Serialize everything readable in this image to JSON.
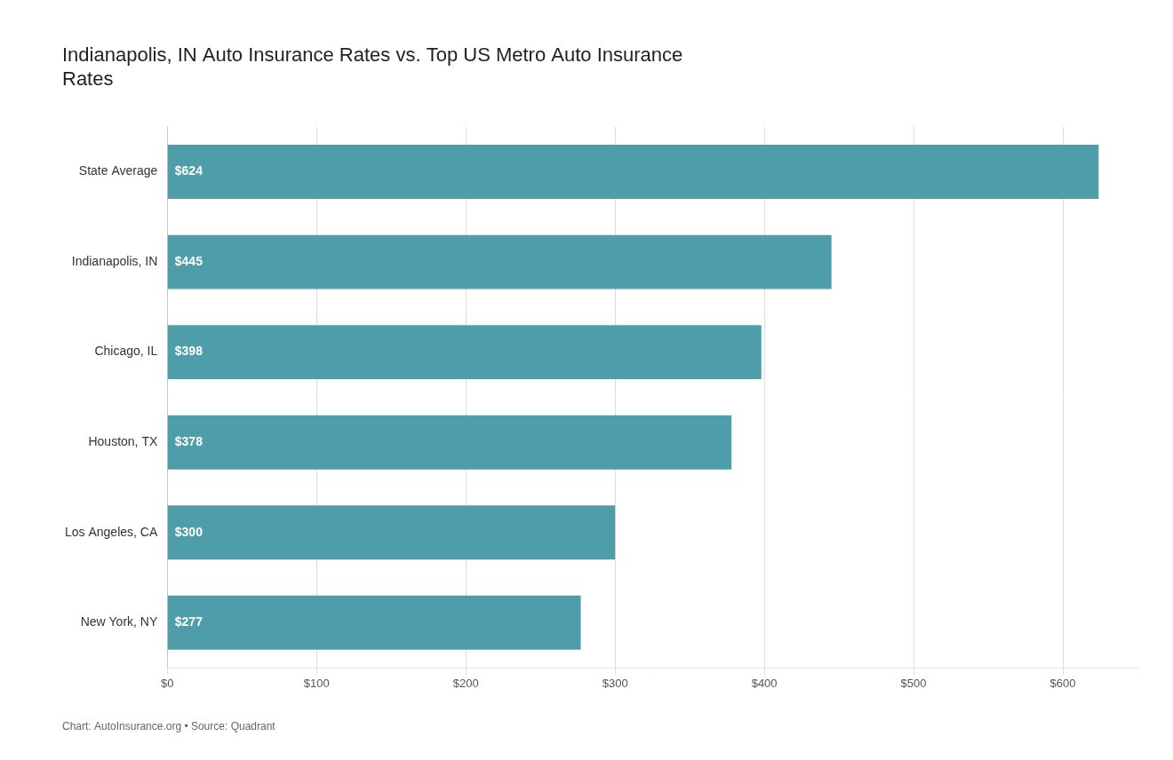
{
  "chart_data": {
    "type": "bar",
    "orientation": "horizontal",
    "title": "Indianapolis, IN Auto Insurance Rates vs. Top US Metro Auto Insurance\nRates",
    "annotations": [
      "Chart: AutoInsurance.org • Source: Quadrant"
    ],
    "categories": [
      "State Average",
      "Indianapolis, IN",
      "Chicago, IL",
      "Houston, TX",
      "Los Angeles, CA",
      "New York, NY"
    ],
    "values": [
      624,
      445,
      398,
      378,
      300,
      277
    ],
    "value_labels": [
      "$624",
      "$445",
      "$398",
      "$378",
      "$300",
      "$277"
    ],
    "data_labels": true,
    "color": "#4d9eaa",
    "xlim": [
      0,
      650
    ],
    "xticks": [
      {
        "value": 0,
        "label": "$0"
      },
      {
        "value": 100,
        "label": "$100"
      },
      {
        "value": 200,
        "label": "$200"
      },
      {
        "value": 300,
        "label": "$300"
      },
      {
        "value": 400,
        "label": "$400"
      },
      {
        "value": 500,
        "label": "$500"
      },
      {
        "value": 600,
        "label": "$600"
      }
    ],
    "grid": true
  }
}
